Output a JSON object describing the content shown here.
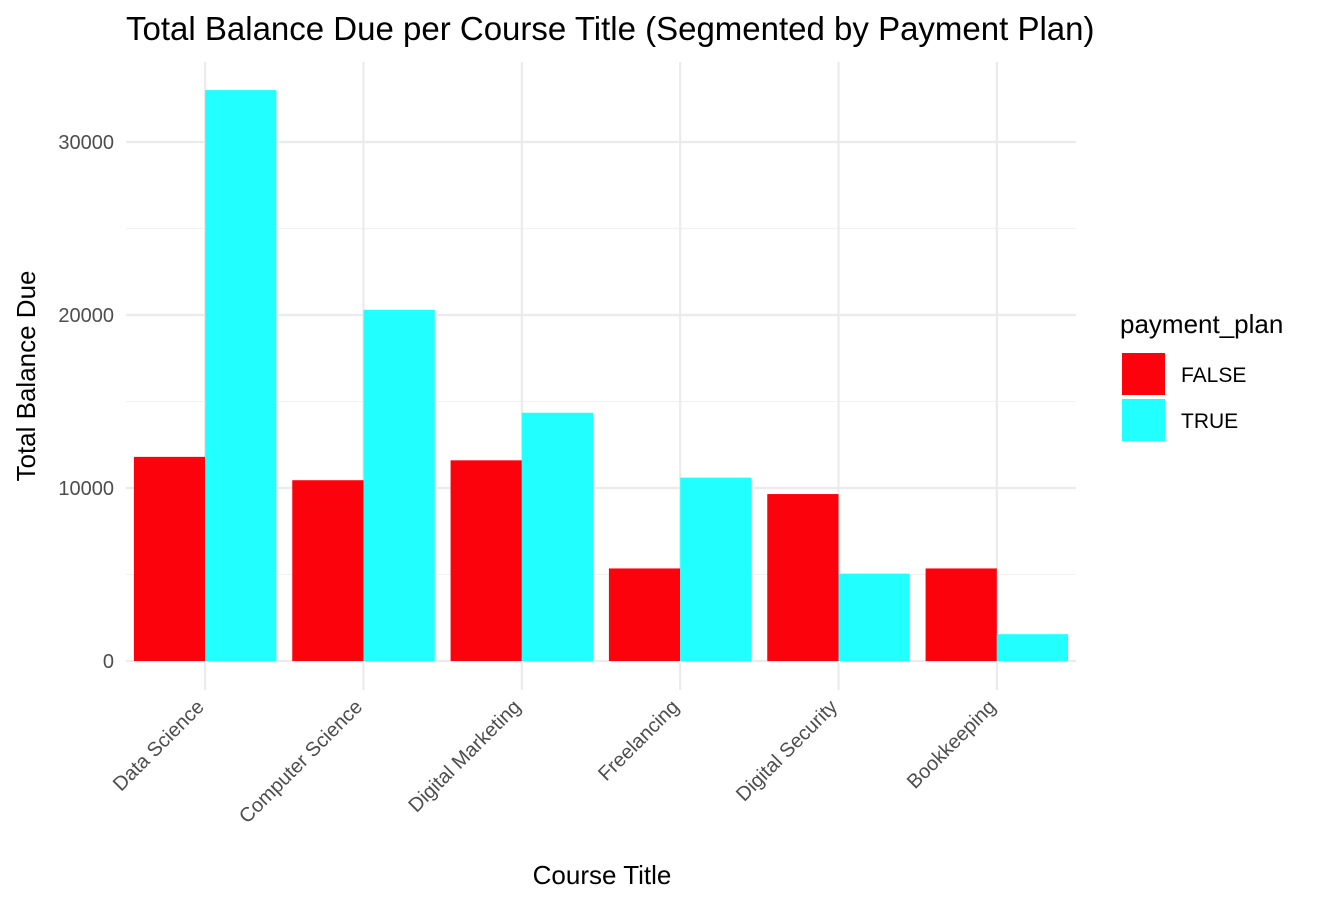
{
  "chart_data": {
    "type": "bar",
    "title": "Total Balance Due per Course Title (Segmented by Payment Plan)",
    "xlabel": "Course Title",
    "ylabel": "Total Balance Due",
    "categories": [
      "Data Science",
      "Computer Science",
      "Digital Marketing",
      "Freelancing",
      "Digital Security",
      "Bookkeeping"
    ],
    "series": [
      {
        "name": "FALSE",
        "color": "#fc020d",
        "values": [
          11800,
          10450,
          11600,
          5350,
          9650,
          5350
        ]
      },
      {
        "name": "TRUE",
        "color": "#22ffff",
        "values": [
          33000,
          20300,
          14350,
          10600,
          5050,
          1550
        ]
      }
    ],
    "ylim": [
      0,
      34500
    ],
    "yticks": [
      0,
      10000,
      20000,
      30000
    ],
    "ytick_labels": [
      "0",
      "10000",
      "20000",
      "30000"
    ],
    "grid": true,
    "legend": {
      "title": "payment_plan",
      "position": "right"
    }
  }
}
